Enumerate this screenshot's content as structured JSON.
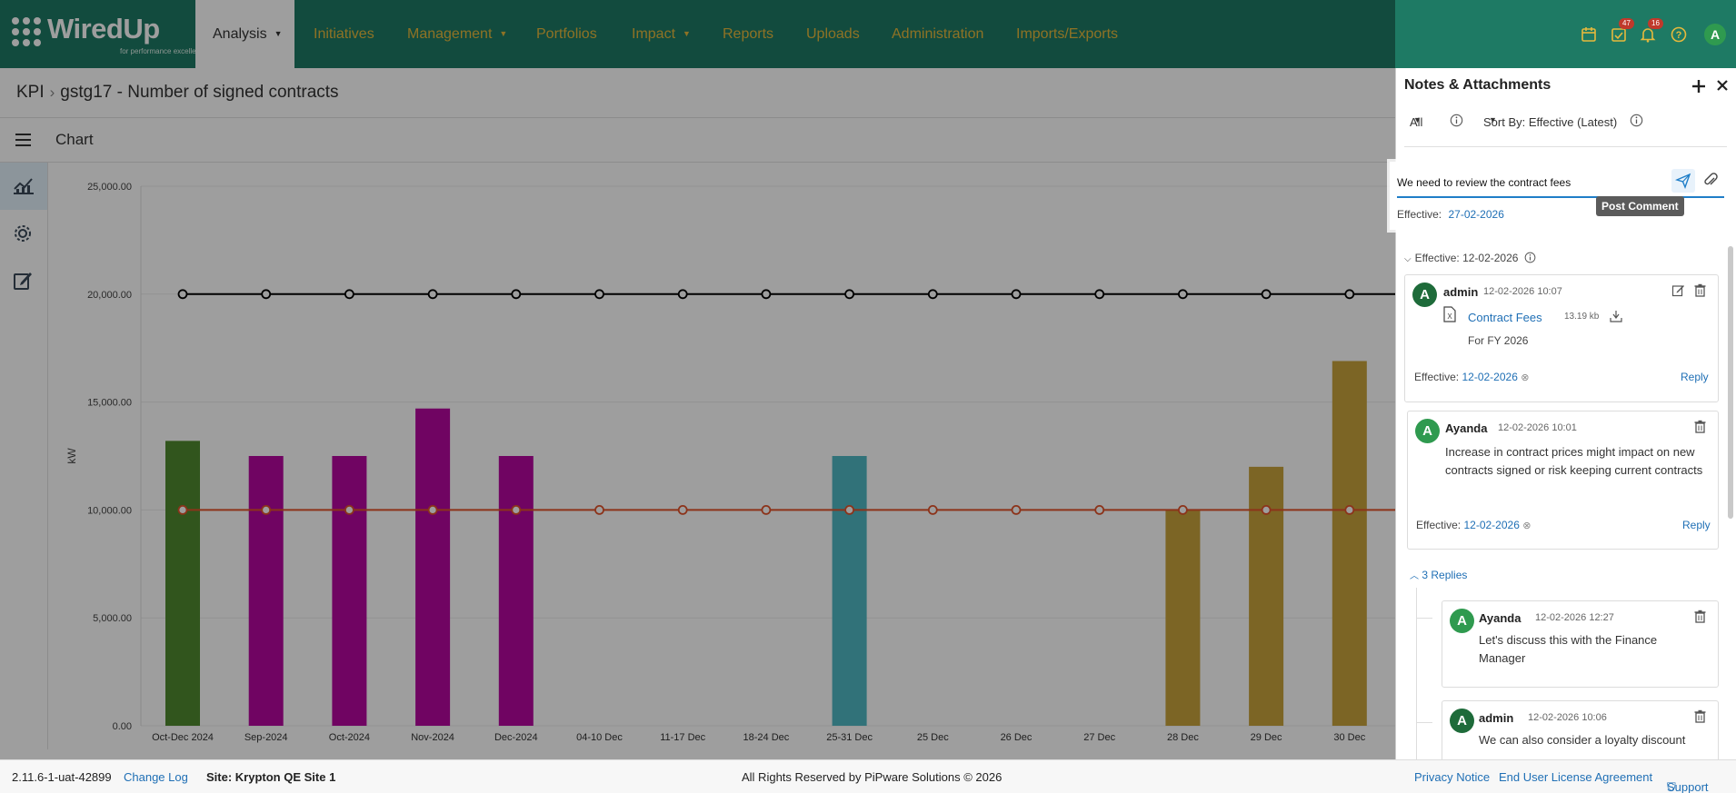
{
  "app": {
    "logo_text": "WiredUp",
    "logo_tagline": "for performance excellence"
  },
  "nav": {
    "items": [
      {
        "label": "Analysis",
        "has_caret": true
      },
      {
        "label": "Initiatives"
      },
      {
        "label": "Management",
        "has_caret": true
      },
      {
        "label": "Portfolios"
      },
      {
        "label": "Impact",
        "has_caret": true
      },
      {
        "label": "Reports"
      },
      {
        "label": "Uploads"
      },
      {
        "label": "Administration"
      },
      {
        "label": "Imports/Exports"
      }
    ],
    "badges": {
      "tasks": "47",
      "notifications": "16"
    },
    "user_initial": "A"
  },
  "breadcrumb": {
    "root": "KPI",
    "current": "gstg17 - Number of signed contracts"
  },
  "chart_header": {
    "title": "Chart"
  },
  "chart_data": {
    "type": "bar",
    "ylabel": "kW",
    "ylim": [
      0,
      25000
    ],
    "yticks": [
      "0.00",
      "5,000.00",
      "10,000.00",
      "15,000.00",
      "20,000.00",
      "25,000.00"
    ],
    "categories": [
      "Oct-Dec 2024",
      "Sep-2024",
      "Oct-2024",
      "Nov-2024",
      "Dec-2024",
      "04-10 Dec",
      "11-17 Dec",
      "18-24 Dec",
      "25-31 Dec",
      "25 Dec",
      "26 Dec",
      "27 Dec",
      "28 Dec",
      "29 Dec",
      "30 Dec"
    ],
    "bars": [
      13200,
      12500,
      12500,
      14700,
      12500,
      null,
      null,
      null,
      12500,
      null,
      null,
      null,
      10000,
      12000,
      16900
    ],
    "bar_colors": [
      "#4f8a2f",
      "#b5089e",
      "#b5089e",
      "#b5089e",
      "#b5089e",
      null,
      null,
      null,
      "#50b9c3",
      null,
      null,
      null,
      "#c9a43c",
      "#c9a43c",
      "#c9a43c"
    ],
    "series": [
      {
        "type": "line",
        "values": [
          20000,
          20000,
          20000,
          20000,
          20000,
          20000,
          20000,
          20000,
          20000,
          20000,
          20000,
          20000,
          20000,
          20000,
          20000
        ],
        "color": "#000000"
      },
      {
        "type": "line",
        "values": [
          10000,
          10000,
          10000,
          10000,
          10000,
          10000,
          10000,
          10000,
          10000,
          10000,
          10000,
          10000,
          10000,
          10000,
          10000
        ],
        "color": "#e2532b"
      }
    ]
  },
  "panel": {
    "title": "Notes & Attachments",
    "filter": "All",
    "sort": "Sort By: Effective (Latest)",
    "compose": {
      "value": "We need to review the contract fees",
      "effective_label": "Effective:",
      "effective_date": "27-02-2026",
      "tooltip": "Post Comment"
    },
    "group": {
      "label": "Effective: 12-02-2026"
    },
    "notes": [
      {
        "initial": "A",
        "author": "admin",
        "timestamp": "12-02-2026 10:07",
        "attachment_name": "Contract Fees",
        "attachment_size": "13.19 kb",
        "text": "For FY 2026",
        "effective_label": "Effective:",
        "effective_date": "12-02-2026",
        "reply": "Reply"
      },
      {
        "initial": "A",
        "author": "Ayanda",
        "timestamp": "12-02-2026 10:01",
        "text": "Increase in contract prices might impact on new contracts signed or risk keeping current contracts",
        "effective_label": "Effective:",
        "effective_date": "12-02-2026",
        "reply": "Reply"
      }
    ],
    "replies_toggle": "3 Replies",
    "replies": [
      {
        "initial": "A",
        "author": "Ayanda",
        "timestamp": "12-02-2026 12:27",
        "text": "Let's discuss this with the Finance Manager"
      },
      {
        "initial": "A",
        "author": "admin",
        "timestamp": "12-02-2026 10:06",
        "text": "We can also consider a loyalty discount"
      }
    ]
  },
  "footer": {
    "version": "2.11.6-1-uat-42899",
    "changelog": "Change Log",
    "site": "Site: Krypton QE Site 1",
    "copyright": "All Rights Reserved by PiPware Solutions © 2026",
    "privacy": "Privacy Notice",
    "eula": "End User License Agreement",
    "support": "Support"
  }
}
